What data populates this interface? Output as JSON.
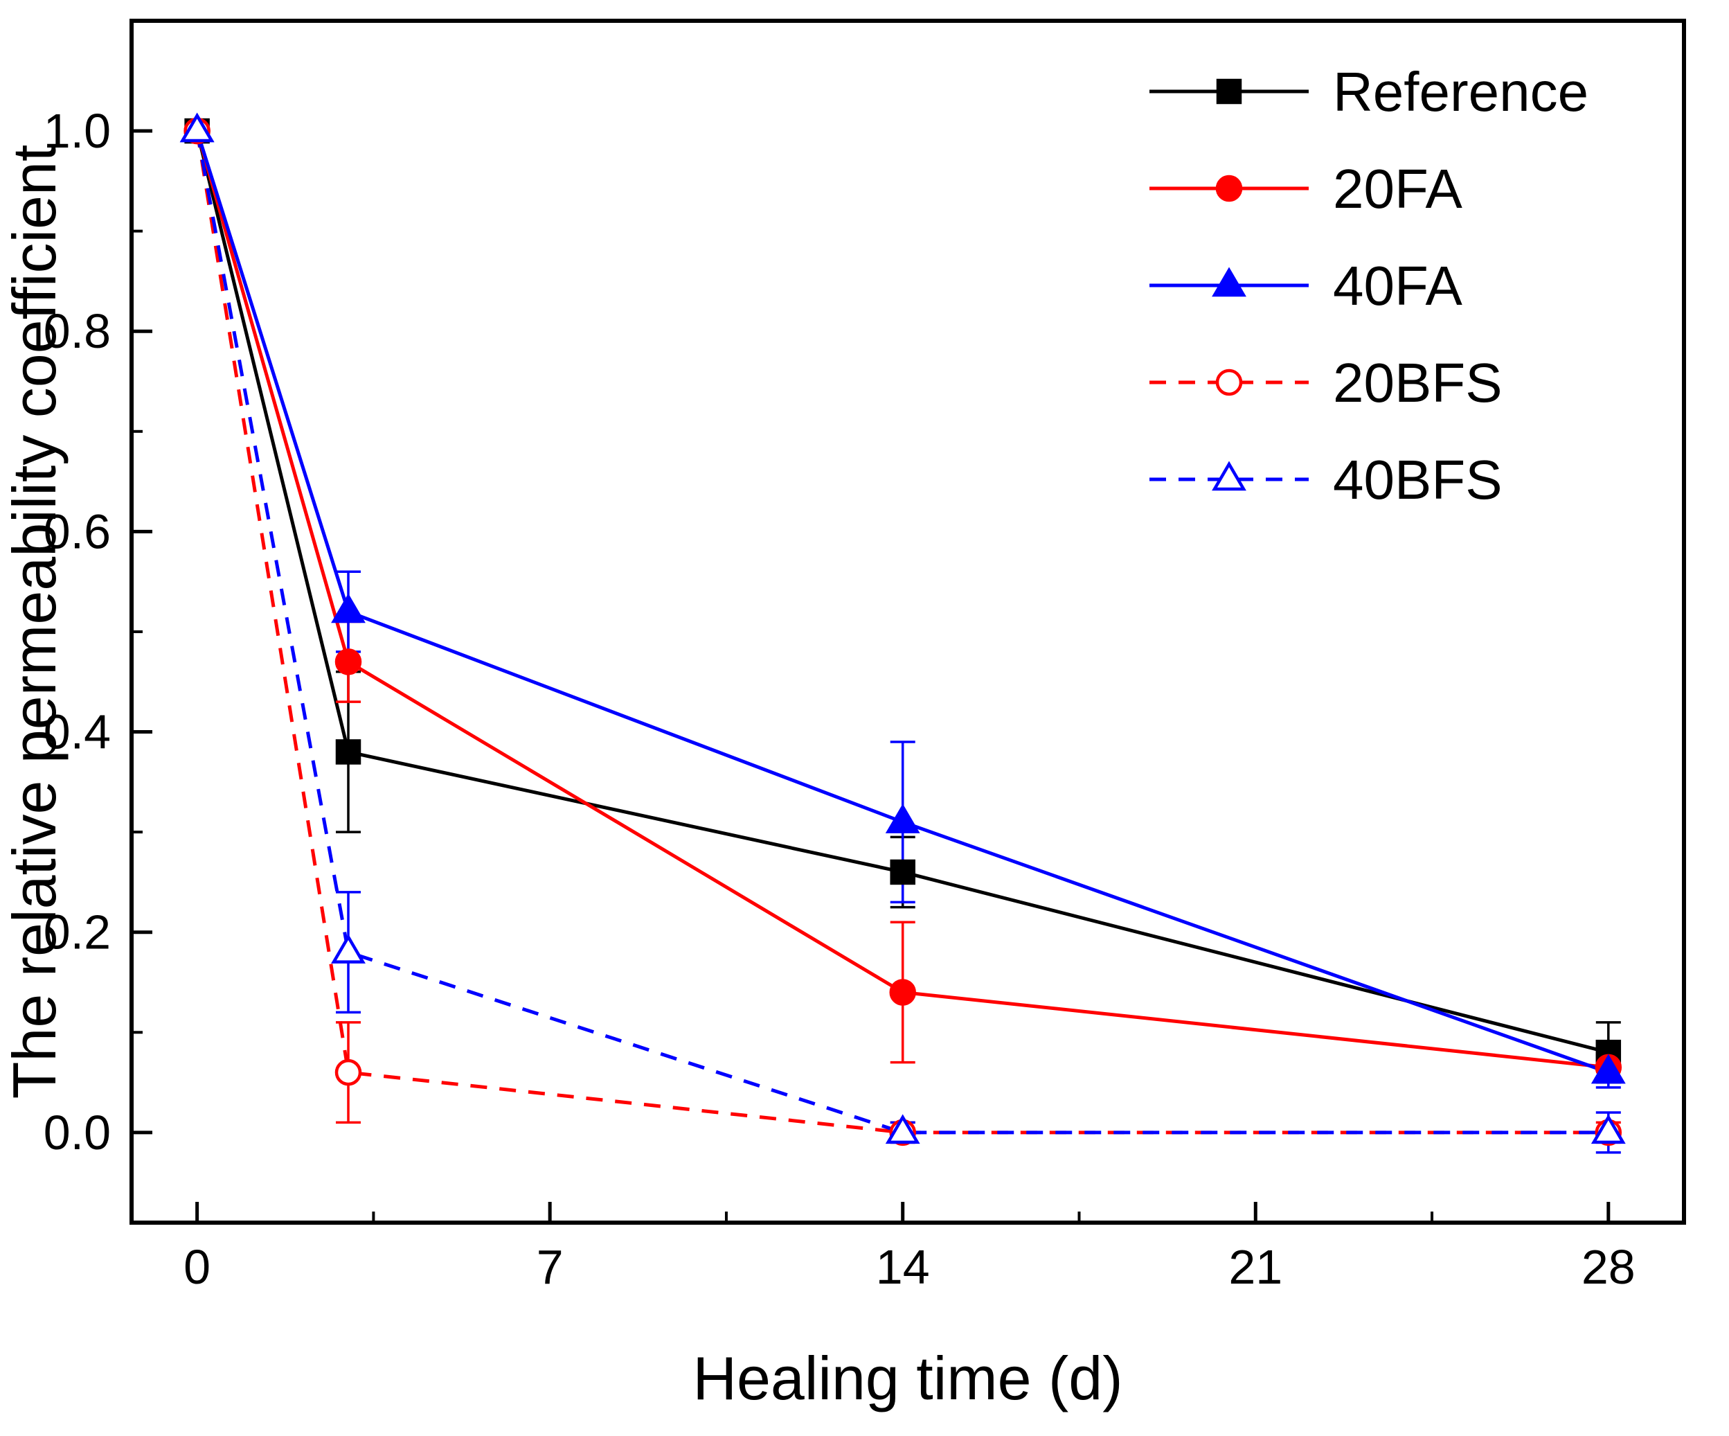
{
  "chart_data": {
    "type": "line",
    "title": "",
    "xlabel": "Healing time (d)",
    "ylabel": "The relative permeability coefficient",
    "x": [
      0,
      3,
      14,
      28
    ],
    "x_ticks": [
      0,
      7,
      14,
      21,
      28
    ],
    "y_ticks": [
      0.0,
      0.2,
      0.4,
      0.6,
      0.8,
      1.0
    ],
    "xlim": [
      -1.3,
      29.5
    ],
    "ylim": [
      -0.09,
      1.11
    ],
    "grid": false,
    "legend_position": "top-right",
    "legend_entries": [
      "Reference",
      "20FA",
      "40FA",
      "20BFS",
      "40BFS"
    ],
    "series": [
      {
        "name": "Reference",
        "color": "#000000",
        "marker": "square",
        "marker_fill": "filled",
        "line_style": "solid",
        "values": [
          1.0,
          0.38,
          0.26,
          0.08
        ],
        "errors": [
          0,
          0.08,
          0.035,
          0.03
        ]
      },
      {
        "name": "20FA",
        "color": "#ff0000",
        "marker": "circle",
        "marker_fill": "filled",
        "line_style": "solid",
        "values": [
          1.0,
          0.47,
          0.14,
          0.065
        ],
        "errors": [
          0,
          0.04,
          0.07,
          0.012
        ]
      },
      {
        "name": "40FA",
        "color": "#0000ff",
        "marker": "triangle",
        "marker_fill": "filled",
        "line_style": "solid",
        "values": [
          1.0,
          0.52,
          0.31,
          0.06
        ],
        "errors": [
          0,
          0.04,
          0.08,
          0.015
        ]
      },
      {
        "name": "20BFS",
        "color": "#ff0000",
        "marker": "circle",
        "marker_fill": "open",
        "line_style": "dashed",
        "values": [
          1.0,
          0.06,
          0.0,
          0.0
        ],
        "errors": [
          0,
          0.05,
          0.01,
          0.01
        ]
      },
      {
        "name": "40BFS",
        "color": "#0000ff",
        "marker": "triangle",
        "marker_fill": "open",
        "line_style": "dashed",
        "values": [
          1.0,
          0.18,
          0.0,
          0.0
        ],
        "errors": [
          0,
          0.06,
          0.01,
          0.02
        ]
      }
    ]
  }
}
